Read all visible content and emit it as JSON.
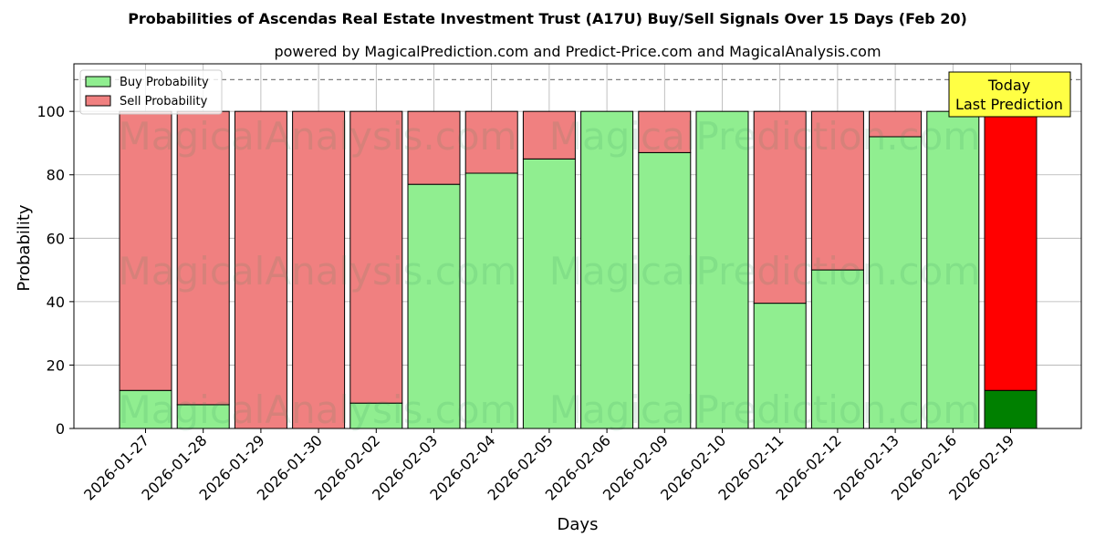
{
  "chart_data": {
    "type": "bar",
    "stacked": true,
    "title": "Probabilities of Ascendas Real Estate Investment Trust (A17U) Buy/Sell Signals Over 15 Days (Feb 20)",
    "subtitle": "powered by MagicalPrediction.com and Predict-Price.com and MagicalAnalysis.com",
    "xlabel": "Days",
    "ylabel": "Probability",
    "ylim": [
      0,
      115
    ],
    "yticks": [
      0,
      20,
      40,
      60,
      80,
      100
    ],
    "grid": true,
    "legend_position": "top-left",
    "reference_line": 110,
    "categories": [
      "2026-01-27",
      "2026-01-28",
      "2026-01-29",
      "2026-01-30",
      "2026-02-02",
      "2026-02-03",
      "2026-02-04",
      "2026-02-05",
      "2026-02-06",
      "2026-02-09",
      "2026-02-10",
      "2026-02-11",
      "2026-02-12",
      "2026-02-13",
      "2026-02-16",
      "2026-02-19"
    ],
    "series": [
      {
        "name": "Buy Probability",
        "color": "#90ee90",
        "values": [
          12,
          7.5,
          0,
          0,
          8,
          77,
          80.5,
          85,
          100,
          87,
          100,
          39.5,
          50,
          92,
          100,
          12
        ]
      },
      {
        "name": "Sell Probability",
        "color": "#f08080",
        "values": [
          88,
          92.5,
          100,
          100,
          92,
          23,
          19.5,
          15,
          0,
          13,
          0,
          60.5,
          50,
          8,
          0,
          88
        ]
      }
    ],
    "highlight": {
      "index": 15,
      "buy_color": "#008000",
      "sell_color": "#ff0000",
      "label_line1": "Today",
      "label_line2": "Last Prediction",
      "box_color": "#ffff44"
    }
  },
  "watermarks": [
    "MagicalAnalysis.com",
    "MagicalPrediction.com"
  ]
}
